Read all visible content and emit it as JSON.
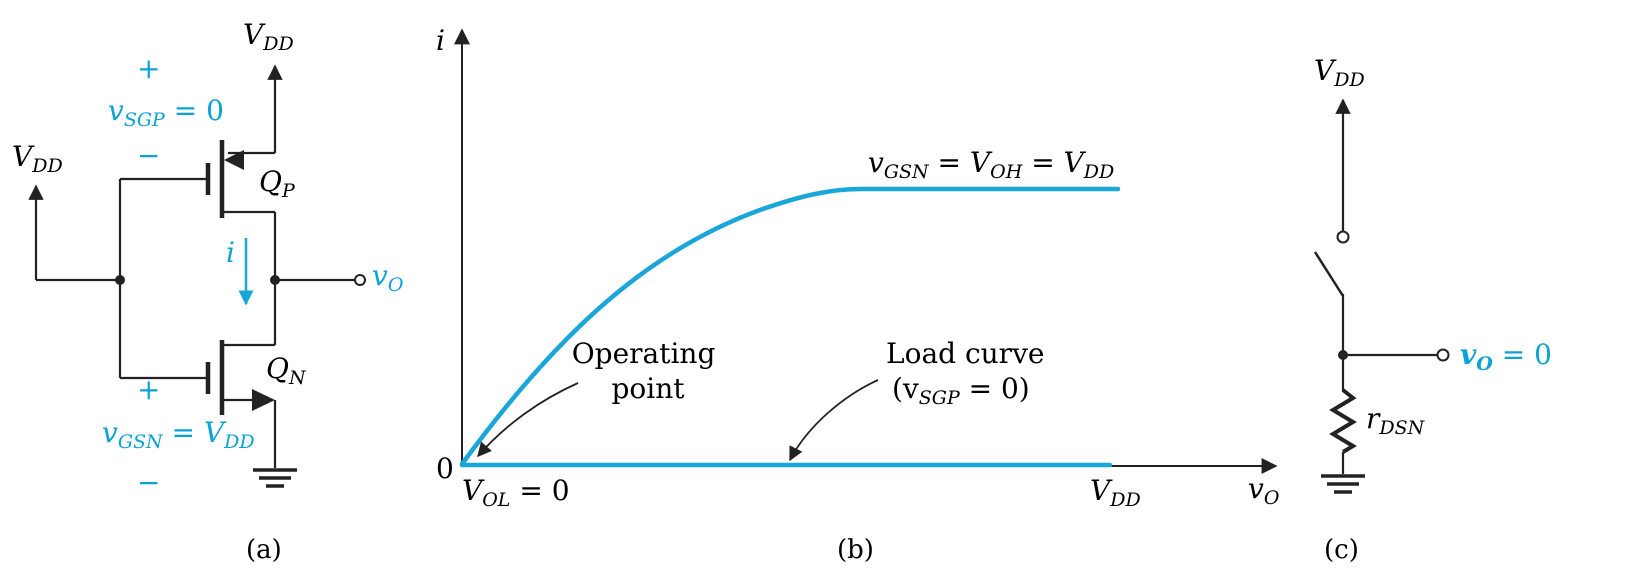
{
  "colors": {
    "accent": "#0aa3d6",
    "ink": "#222222"
  },
  "panel_a": {
    "vdd_top": {
      "main": "V",
      "sub": "DD"
    },
    "vdd_left": {
      "main": "V",
      "sub": "DD"
    },
    "plus_top": "+",
    "minus_top": "−",
    "vsgp": {
      "main": "v",
      "sub": "SGP",
      "rest": " = 0"
    },
    "qp": {
      "main": "Q",
      "sub": "P"
    },
    "qn": {
      "main": "Q",
      "sub": "N"
    },
    "current": "i",
    "vo": {
      "main": "v",
      "sub": "O"
    },
    "plus_bottom": "+",
    "minus_bottom": "−",
    "vgsn": {
      "main": "v",
      "sub": "GSN",
      "mid": " = V",
      "sub2": "DD"
    },
    "caption": "(a)"
  },
  "panel_b": {
    "y_axis": "i",
    "x_axis": {
      "main": "v",
      "sub": "O"
    },
    "origin": "0",
    "vol": {
      "main": "V",
      "sub": "OL",
      "rest": " = 0"
    },
    "vdd_tick": {
      "main": "V",
      "sub": "DD"
    },
    "curve_label": {
      "m1": "v",
      "s1": "GSN",
      "m2": " = V",
      "s2": "OH",
      "m3": " = V",
      "s3": "DD"
    },
    "operating_point": [
      "Operating",
      "point"
    ],
    "load_curve": [
      "Load curve"
    ],
    "load_curve_cond": {
      "open": "(v",
      "sub": "SGP",
      "rest": " = 0)"
    },
    "caption": "(b)"
  },
  "panel_c": {
    "vdd": {
      "main": "V",
      "sub": "DD"
    },
    "vo": {
      "main": "v",
      "sub": "O",
      "rest": " = 0"
    },
    "rdsn": {
      "main": "r",
      "sub": "DSN"
    },
    "caption": "(c)"
  }
}
